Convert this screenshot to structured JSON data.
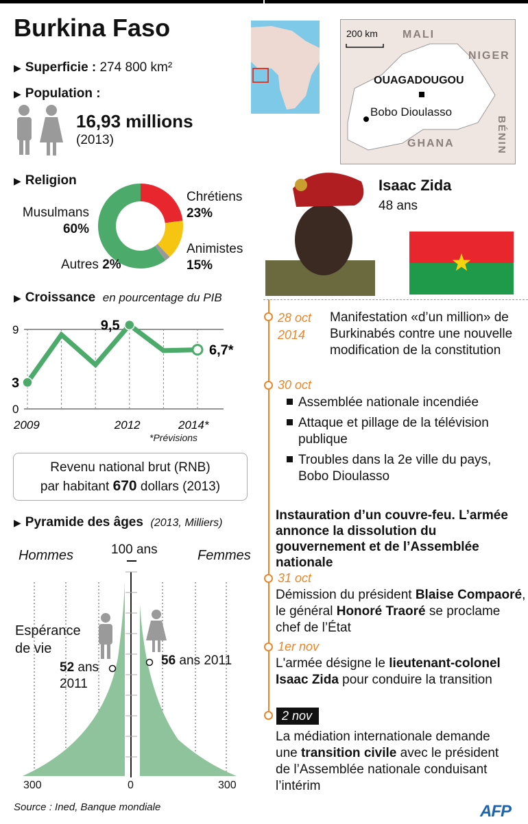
{
  "title": "Burkina Faso",
  "superficie": {
    "label": "Superficie :",
    "value": "274 800 km²"
  },
  "population": {
    "label": "Population :",
    "value": "16,93 millions",
    "year": "(2013)"
  },
  "religion": {
    "label": "Religion",
    "slices": [
      {
        "name": "Musulmans",
        "pct": 60,
        "label": "60%",
        "color": "#4caa6a"
      },
      {
        "name": "Chrétiens",
        "pct": 23,
        "label": "23%",
        "color": "#e8262d"
      },
      {
        "name": "Animistes",
        "pct": 15,
        "label": "15%",
        "color": "#f6c511"
      },
      {
        "name": "Autres",
        "pct": 2,
        "label": "2%",
        "color": "#999999"
      }
    ]
  },
  "map": {
    "scale": "200 km",
    "countries": [
      "MALI",
      "NIGER",
      "BÉNIN",
      "GHANA"
    ],
    "capital": "OUAGADOUGOU",
    "city": "Bobo Dioulasso"
  },
  "person": {
    "first": "Isaac",
    "last": "Zida",
    "age": "48 ans"
  },
  "flag": {
    "top": "#e8262d",
    "bottom": "#1f9a4a",
    "star": "#f6d20f"
  },
  "chart_data": [
    {
      "type": "line",
      "title": "Croissance",
      "subtitle": "en pourcentage du PIB",
      "x": [
        2009,
        2010,
        2011,
        2012,
        2013,
        2014
      ],
      "values": [
        3,
        8.4,
        5,
        9.5,
        6.6,
        6.7
      ],
      "ylim": [
        0,
        9.5
      ],
      "yticks": [
        "0",
        "9"
      ],
      "xticks": [
        "2009",
        "2012",
        "2014*"
      ],
      "labels": {
        "first": "3",
        "max": "9,5",
        "last": "6,7*"
      },
      "note": "*Prévisions",
      "color": "#4caa6a"
    },
    {
      "type": "area",
      "title": "Pyramide des âges",
      "subtitle": "(2013, Milliers)",
      "top_label": "100 ans",
      "left": "Hommes",
      "right": "Femmes",
      "xticks": [
        "300",
        "0",
        "300"
      ],
      "xlim": [
        -300,
        300
      ],
      "life_expectancy": {
        "label": "Espérance de vie",
        "men": "52",
        "women": "56",
        "unit": "ans",
        "year": "2011"
      },
      "color": "#8fc39c"
    }
  ],
  "rnb": {
    "line1": "Revenu national brut (RNB)",
    "pre": "par habitant ",
    "value": "670",
    "post": " dollars (2013)"
  },
  "source": "Source : Ined, Banque mondiale",
  "logo": "AFP",
  "timeline": [
    {
      "date": "28 oct 2014",
      "text": "Manifestation «d’un million» de Burkinabés contre une nouvelle modification de la constitution"
    },
    {
      "date": "30 oct",
      "items": [
        "Assemblée nationale incendiée",
        "Attaque et pillage de la télévision publique",
        "Troubles dans la 2e ville du pays, Bobo Dioulasso"
      ],
      "bold": "Instauration d’un couvre-feu. L’armée annonce la dissolution du gouvernement et de l’Assemblée nationale"
    },
    {
      "date": "31 oct",
      "t1": "Démission du président ",
      "b1": "Blaise Compaoré",
      "t2": ",  le général ",
      "b2": "Honoré Traoré",
      "t3": " se proclame chef de l’État"
    },
    {
      "date": "1er nov",
      "t1": "L'armée désigne le ",
      "b1": "lieutenant-colonel Isaac Zida",
      "t2": " pour conduire la transition"
    },
    {
      "date": "2 nov",
      "t1": "La médiation internationale demande une ",
      "b1": "transition civile",
      "t2": " avec le président de l’Assemblée nationale conduisant l’intérim"
    }
  ]
}
